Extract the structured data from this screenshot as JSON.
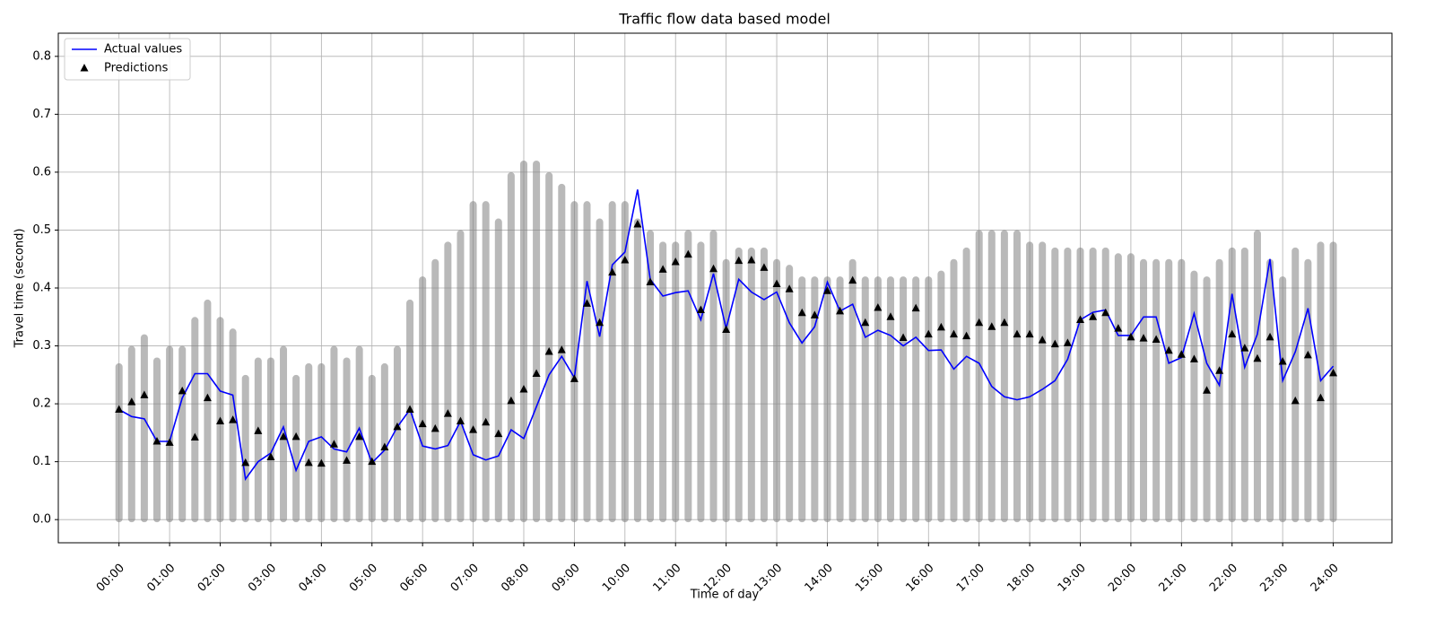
{
  "chart_data": {
    "type": "line",
    "title": "Traffic flow data based model",
    "xlabel": "Time of day",
    "ylabel": "Travel time (second)",
    "x": [
      0,
      0.25,
      0.5,
      0.75,
      1,
      1.25,
      1.5,
      1.75,
      2,
      2.25,
      2.5,
      2.75,
      3,
      3.25,
      3.5,
      3.75,
      4,
      4.25,
      4.5,
      4.75,
      5,
      5.25,
      5.5,
      5.75,
      6,
      6.25,
      6.5,
      6.75,
      7,
      7.25,
      7.5,
      7.75,
      8,
      8.25,
      8.5,
      8.75,
      9,
      9.25,
      9.5,
      9.75,
      10,
      10.25,
      10.5,
      10.75,
      11,
      11.25,
      11.5,
      11.75,
      12,
      12.25,
      12.5,
      12.75,
      13,
      13.25,
      13.5,
      13.75,
      14,
      14.25,
      14.5,
      14.75,
      15,
      15.25,
      15.5,
      15.75,
      16,
      16.25,
      16.5,
      16.75,
      17,
      17.25,
      17.5,
      17.75,
      18,
      18.25,
      18.5,
      18.75,
      19,
      19.25,
      19.5,
      19.75,
      20,
      20.25,
      20.5,
      20.75,
      21,
      21.25,
      21.5,
      21.75,
      22,
      22.25,
      22.5,
      22.75,
      23,
      23.25,
      23.5,
      23.75,
      24
    ],
    "series": [
      {
        "name": "Actual values",
        "color": "#0000ff",
        "style": "line",
        "values": [
          0.19,
          0.178,
          0.174,
          0.135,
          0.135,
          0.21,
          0.252,
          0.252,
          0.222,
          0.215,
          0.07,
          0.1,
          0.115,
          0.16,
          0.085,
          0.135,
          0.143,
          0.122,
          0.117,
          0.158,
          0.098,
          0.12,
          0.16,
          0.19,
          0.127,
          0.122,
          0.128,
          0.17,
          0.112,
          0.103,
          0.11,
          0.155,
          0.14,
          0.195,
          0.25,
          0.282,
          0.245,
          0.412,
          0.316,
          0.44,
          0.462,
          0.57,
          0.415,
          0.386,
          0.392,
          0.395,
          0.345,
          0.425,
          0.33,
          0.415,
          0.393,
          0.38,
          0.393,
          0.34,
          0.305,
          0.333,
          0.41,
          0.36,
          0.372,
          0.315,
          0.327,
          0.318,
          0.3,
          0.315,
          0.292,
          0.293,
          0.26,
          0.282,
          0.27,
          0.23,
          0.212,
          0.207,
          0.212,
          0.225,
          0.24,
          0.277,
          0.345,
          0.358,
          0.362,
          0.318,
          0.318,
          0.35,
          0.35,
          0.27,
          0.28,
          0.356,
          0.27,
          0.232,
          0.39,
          0.263,
          0.32,
          0.45,
          0.24,
          0.29,
          0.365,
          0.24,
          0.265
        ]
      },
      {
        "name": "Predictions",
        "color": "#000000",
        "style": "triangle",
        "values": [
          0.19,
          0.203,
          0.215,
          0.135,
          0.133,
          0.222,
          0.142,
          0.21,
          0.17,
          0.172,
          0.098,
          0.153,
          0.108,
          0.143,
          0.143,
          0.098,
          0.097,
          0.13,
          0.102,
          0.143,
          0.1,
          0.125,
          0.16,
          0.19,
          0.165,
          0.157,
          0.183,
          0.17,
          0.155,
          0.168,
          0.148,
          0.205,
          0.225,
          0.252,
          0.29,
          0.293,
          0.243,
          0.373,
          0.34,
          0.427,
          0.448,
          0.51,
          0.41,
          0.432,
          0.445,
          0.458,
          0.362,
          0.433,
          0.328,
          0.447,
          0.448,
          0.435,
          0.407,
          0.398,
          0.357,
          0.353,
          0.395,
          0.36,
          0.413,
          0.34,
          0.366,
          0.35,
          0.314,
          0.365,
          0.32,
          0.332,
          0.32,
          0.317,
          0.34,
          0.333,
          0.34,
          0.32,
          0.32,
          0.31,
          0.303,
          0.305,
          0.345,
          0.35,
          0.357,
          0.33,
          0.315,
          0.313,
          0.311,
          0.292,
          0.285,
          0.277,
          0.223,
          0.257,
          0.32,
          0.296,
          0.278,
          0.315,
          0.273,
          0.205,
          0.284,
          0.21,
          0.253
        ]
      }
    ],
    "observed_spread": {
      "color": "#808080",
      "values": [
        0.27,
        0.3,
        0.32,
        0.28,
        0.3,
        0.3,
        0.35,
        0.38,
        0.35,
        0.33,
        0.25,
        0.28,
        0.28,
        0.3,
        0.25,
        0.27,
        0.27,
        0.3,
        0.28,
        0.3,
        0.25,
        0.27,
        0.3,
        0.38,
        0.42,
        0.45,
        0.48,
        0.5,
        0.55,
        0.55,
        0.52,
        0.6,
        0.62,
        0.62,
        0.6,
        0.58,
        0.55,
        0.55,
        0.52,
        0.55,
        0.55,
        0.52,
        0.5,
        0.48,
        0.48,
        0.5,
        0.48,
        0.5,
        0.45,
        0.47,
        0.47,
        0.47,
        0.45,
        0.44,
        0.42,
        0.42,
        0.42,
        0.42,
        0.45,
        0.42,
        0.42,
        0.42,
        0.42,
        0.42,
        0.42,
        0.43,
        0.45,
        0.47,
        0.5,
        0.5,
        0.5,
        0.5,
        0.48,
        0.48,
        0.47,
        0.47,
        0.47,
        0.47,
        0.47,
        0.46,
        0.46,
        0.45,
        0.45,
        0.45,
        0.45,
        0.43,
        0.42,
        0.45,
        0.47,
        0.47,
        0.5,
        0.45,
        0.42,
        0.47,
        0.45,
        0.48,
        0.48
      ]
    },
    "xlim": [
      -1.2,
      25.16
    ],
    "xticks": [
      {
        "value": 0,
        "label": "00:00"
      },
      {
        "value": 1,
        "label": "01:00"
      },
      {
        "value": 2,
        "label": "02:00"
      },
      {
        "value": 3,
        "label": "03:00"
      },
      {
        "value": 4,
        "label": "04:00"
      },
      {
        "value": 5,
        "label": "05:00"
      },
      {
        "value": 6,
        "label": "06:00"
      },
      {
        "value": 7,
        "label": "07:00"
      },
      {
        "value": 8,
        "label": "08:00"
      },
      {
        "value": 9,
        "label": "09:00"
      },
      {
        "value": 10,
        "label": "10:00"
      },
      {
        "value": 11,
        "label": "11:00"
      },
      {
        "value": 12,
        "label": "12:00"
      },
      {
        "value": 13,
        "label": "13:00"
      },
      {
        "value": 14,
        "label": "14:00"
      },
      {
        "value": 15,
        "label": "15:00"
      },
      {
        "value": 16,
        "label": "16:00"
      },
      {
        "value": 17,
        "label": "17:00"
      },
      {
        "value": 18,
        "label": "18:00"
      },
      {
        "value": 19,
        "label": "19:00"
      },
      {
        "value": 20,
        "label": "20:00"
      },
      {
        "value": 21,
        "label": "21:00"
      },
      {
        "value": 22,
        "label": "22:00"
      },
      {
        "value": 23,
        "label": "23:00"
      },
      {
        "value": 24,
        "label": "24:00"
      }
    ],
    "ylim": [
      -0.04,
      0.84
    ],
    "yticks": [
      {
        "value": 0,
        "label": "0.0"
      },
      0.1,
      0.2,
      0.3,
      0.4,
      0.5,
      0.6,
      0.7,
      0.8
    ],
    "grid": true,
    "legend": "upper-left"
  }
}
